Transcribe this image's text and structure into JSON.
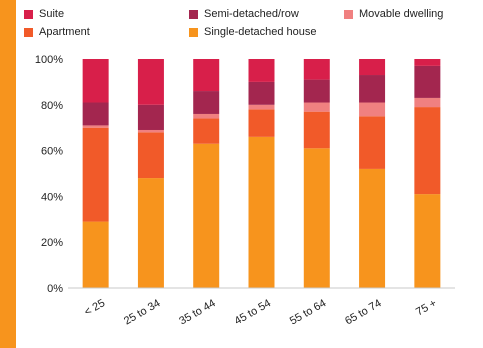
{
  "chart_data": {
    "type": "bar",
    "stacked": true,
    "percent": true,
    "categories": [
      "< 25",
      "25 to 34",
      "35 to 44",
      "45 to 54",
      "55 to 64",
      "65 to 74",
      "75 +"
    ],
    "series": [
      {
        "name": "Single-detached house",
        "color": "#f7941d",
        "values": [
          29,
          48,
          63,
          66,
          61,
          52,
          41
        ]
      },
      {
        "name": "Apartment",
        "color": "#f15a29",
        "values": [
          41,
          20,
          11,
          12,
          16,
          23,
          38
        ]
      },
      {
        "name": "Movable dwelling",
        "color": "#f08080",
        "values": [
          1,
          1,
          2,
          2,
          4,
          6,
          4
        ]
      },
      {
        "name": "Semi-detached/row",
        "color": "#a3264f",
        "values": [
          10,
          11,
          10,
          10,
          10,
          12,
          14
        ]
      },
      {
        "name": "Suite",
        "color": "#d81f4a",
        "values": [
          19,
          20,
          14,
          10,
          9,
          7,
          3
        ]
      }
    ],
    "yticks": [
      "0%",
      "20%",
      "40%",
      "60%",
      "80%",
      "100%"
    ],
    "ylim": [
      0,
      100
    ],
    "grid": false,
    "legend_position": "top",
    "title": "",
    "xlabel": "",
    "ylabel": ""
  },
  "legend": {
    "suite": "Suite",
    "semi": "Semi-detached/row",
    "movable": "Movable dwelling",
    "apartment": "Apartment",
    "single": "Single-detached house"
  },
  "colors": {
    "accent": "#f7941d",
    "suite": "#d81f4a",
    "semi": "#a3264f",
    "movable": "#f08080",
    "apartment": "#f15a29",
    "single": "#f7941d"
  }
}
